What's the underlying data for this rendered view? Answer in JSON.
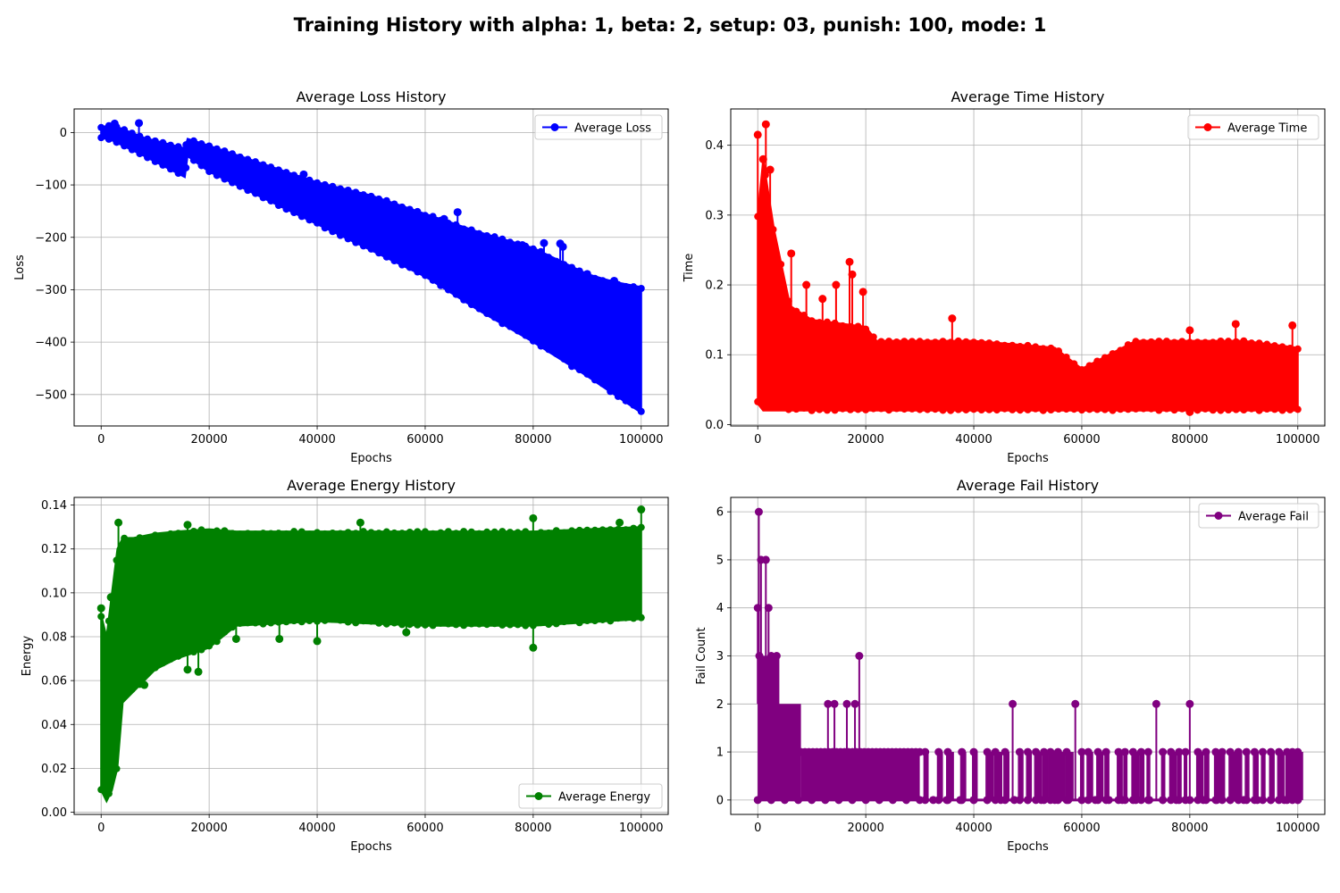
{
  "figure": {
    "suptitle": "Training History with alpha: 1, beta: 2, setup: 03, punish: 100, mode: 1"
  },
  "chart_data": [
    {
      "type": "line",
      "title": "Average Loss History",
      "xlabel": "Epochs",
      "ylabel": "Loss",
      "xlim": [
        -5000,
        105000
      ],
      "ylim": [
        -560,
        45
      ],
      "xticks": [
        0,
        20000,
        40000,
        60000,
        80000,
        100000
      ],
      "yticks": [
        -500,
        -400,
        -300,
        -200,
        -100,
        0
      ],
      "grid": true,
      "legend": "top-right",
      "series": [
        {
          "name": "Average Loss",
          "color": "#0000ff",
          "marker": "o",
          "envelope": {
            "x": [
              0,
              2000,
              8000,
              15500,
              16000,
              20000,
              30000,
              40000,
              50000,
              60000,
              70000,
              80000,
              90000,
              95000,
              100000
            ],
            "upper": [
              10,
              15,
              -10,
              -30,
              -12,
              -25,
              -60,
              -95,
              -120,
              -155,
              -190,
              -220,
              -270,
              -285,
              -295
            ],
            "lower": [
              -10,
              -15,
              -45,
              -85,
              -45,
              -75,
              -125,
              -175,
              -225,
              -275,
              -340,
              -400,
              -465,
              -500,
              -535
            ]
          },
          "outliers": [
            {
              "x": 7000,
              "y": 18
            },
            {
              "x": 2500,
              "y": 17
            },
            {
              "x": 37500,
              "y": -80
            },
            {
              "x": 66000,
              "y": -152
            },
            {
              "x": 63500,
              "y": -165
            },
            {
              "x": 82000,
              "y": -211
            },
            {
              "x": 85000,
              "y": -212
            },
            {
              "x": 78000,
              "y": -215
            },
            {
              "x": 85500,
              "y": -218
            },
            {
              "x": 90000,
              "y": -270
            },
            {
              "x": 95000,
              "y": -283
            }
          ]
        }
      ]
    },
    {
      "type": "line",
      "title": "Average Time History",
      "xlabel": "Epochs",
      "ylabel": "Time",
      "xlim": [
        -5000,
        105000
      ],
      "ylim": [
        -0.002,
        0.452
      ],
      "xticks": [
        0,
        20000,
        40000,
        60000,
        80000,
        100000
      ],
      "yticks": [
        0.0,
        0.1,
        0.2,
        0.3,
        0.4
      ],
      "grid": true,
      "legend": "top-right",
      "series": [
        {
          "name": "Average Time",
          "color": "#ff0000",
          "marker": "o",
          "envelope": {
            "x": [
              0,
              1000,
              3000,
              6000,
              10000,
              20000,
              22000,
              40000,
              55000,
              60000,
              70000,
              80000,
              90000,
              100000
            ],
            "upper": [
              0.3,
              0.38,
              0.28,
              0.17,
              0.15,
              0.14,
              0.12,
              0.12,
              0.11,
              0.08,
              0.12,
              0.12,
              0.12,
              0.11
            ],
            "lower": [
              0.03,
              0.02,
              0.02,
              0.02,
              0.02,
              0.02,
              0.02,
              0.02,
              0.02,
              0.02,
              0.02,
              0.02,
              0.02,
              0.02
            ]
          },
          "outliers": [
            {
              "x": 1500,
              "y": 0.43
            },
            {
              "x": 0,
              "y": 0.415
            },
            {
              "x": 1000,
              "y": 0.38
            },
            {
              "x": 2300,
              "y": 0.365
            },
            {
              "x": 6200,
              "y": 0.245
            },
            {
              "x": 17000,
              "y": 0.233
            },
            {
              "x": 17500,
              "y": 0.215
            },
            {
              "x": 14500,
              "y": 0.2
            },
            {
              "x": 9000,
              "y": 0.2
            },
            {
              "x": 19500,
              "y": 0.19
            },
            {
              "x": 12000,
              "y": 0.18
            },
            {
              "x": 36000,
              "y": 0.152
            },
            {
              "x": 88500,
              "y": 0.144
            },
            {
              "x": 99000,
              "y": 0.142
            },
            {
              "x": 80000,
              "y": 0.135
            },
            {
              "x": 80000,
              "y": 0.018
            }
          ]
        }
      ]
    },
    {
      "type": "line",
      "title": "Average Energy History",
      "xlabel": "Epochs",
      "ylabel": "Energy",
      "xlim": [
        -5000,
        105000
      ],
      "ylim": [
        -0.001,
        0.1435
      ],
      "xticks": [
        0,
        20000,
        40000,
        60000,
        80000,
        100000
      ],
      "yticks": [
        0.0,
        0.02,
        0.04,
        0.06,
        0.08,
        0.1,
        0.12,
        0.14
      ],
      "grid": true,
      "legend": "bottom-right",
      "series": [
        {
          "name": "Average Energy",
          "color": "#008000",
          "marker": "o",
          "envelope": {
            "x": [
              0,
              1000,
              2000,
              3000,
              4000,
              6000,
              10000,
              14000,
              20000,
              25000,
              40000,
              60000,
              80000,
              100000
            ],
            "upper": [
              0.09,
              0.08,
              0.1,
              0.12,
              0.125,
              0.125,
              0.127,
              0.128,
              0.129,
              0.128,
              0.128,
              0.128,
              0.128,
              0.13
            ],
            "lower": [
              0.01,
              0.005,
              0.01,
              0.02,
              0.05,
              0.055,
              0.065,
              0.07,
              0.075,
              0.085,
              0.087,
              0.085,
              0.085,
              0.088
            ]
          },
          "outliers": [
            {
              "x": 100000,
              "y": 0.138
            },
            {
              "x": 80000,
              "y": 0.134
            },
            {
              "x": 3200,
              "y": 0.132
            },
            {
              "x": 16000,
              "y": 0.131
            },
            {
              "x": 48000,
              "y": 0.132
            },
            {
              "x": 96000,
              "y": 0.132
            },
            {
              "x": 0,
              "y": 0.093
            },
            {
              "x": 1800,
              "y": 0.098
            },
            {
              "x": 80000,
              "y": 0.075
            },
            {
              "x": 56500,
              "y": 0.082
            },
            {
              "x": 40000,
              "y": 0.078
            },
            {
              "x": 25000,
              "y": 0.079
            },
            {
              "x": 33000,
              "y": 0.079
            },
            {
              "x": 16000,
              "y": 0.065
            },
            {
              "x": 18000,
              "y": 0.064
            },
            {
              "x": 8000,
              "y": 0.058
            }
          ]
        }
      ]
    },
    {
      "type": "line",
      "title": "Average Fail History",
      "xlabel": "Epochs",
      "ylabel": "Fail Count",
      "xlim": [
        -5000,
        105000
      ],
      "ylim": [
        -0.3,
        6.3
      ],
      "xticks": [
        0,
        20000,
        40000,
        60000,
        80000,
        100000
      ],
      "yticks": [
        0,
        1,
        2,
        3,
        4,
        5,
        6
      ],
      "grid": true,
      "legend": "top-right",
      "series": [
        {
          "name": "Average Fail",
          "color": "#800080",
          "marker": "o",
          "solid_bands": [
            {
              "x0": 0,
              "x1": 8000,
              "y0": 0,
              "y1": 2
            },
            {
              "x0": 0,
              "x1": 4000,
              "y0": 0,
              "y1": 3
            },
            {
              "x0": 8000,
              "x1": 30000,
              "y0": 0,
              "y1": 1
            }
          ],
          "spikes": [
            {
              "x": 200,
              "y": 6
            },
            {
              "x": 0,
              "y": 4
            },
            {
              "x": 600,
              "y": 5
            },
            {
              "x": 1500,
              "y": 5
            },
            {
              "x": 2000,
              "y": 4
            },
            {
              "x": 300,
              "y": 3
            },
            {
              "x": 2500,
              "y": 3
            },
            {
              "x": 3500,
              "y": 3
            },
            {
              "x": 18800,
              "y": 3
            },
            {
              "x": 13000,
              "y": 2
            },
            {
              "x": 14200,
              "y": 2
            },
            {
              "x": 16500,
              "y": 2
            },
            {
              "x": 18000,
              "y": 2
            },
            {
              "x": 47200,
              "y": 2
            },
            {
              "x": 58800,
              "y": 2
            },
            {
              "x": 73800,
              "y": 2
            },
            {
              "x": 80000,
              "y": 2
            }
          ],
          "sparse_ones": [
            31000,
            33500,
            35200,
            37800,
            40000,
            42500,
            44000,
            45800,
            48500,
            50000,
            51500,
            53000,
            54200,
            55600,
            57200,
            60000,
            61200,
            63000,
            64500,
            66800,
            68000,
            69500,
            71000,
            72300,
            75000,
            76500,
            78000,
            79200,
            81500,
            83000,
            84800,
            86000,
            87500,
            89000,
            90500,
            92000,
            93500,
            95000,
            96500,
            98000,
            99000,
            100000
          ]
        }
      ]
    }
  ]
}
